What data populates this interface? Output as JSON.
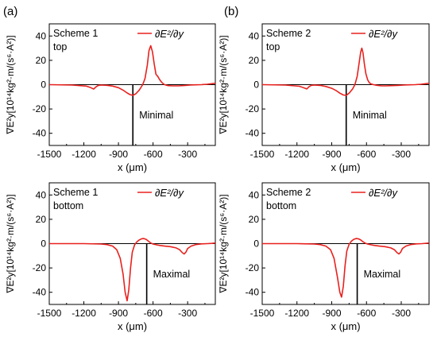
{
  "panel_letters": [
    "(a)",
    "(b)"
  ],
  "chart_data": [
    {
      "type": "line",
      "panel": "(a) top",
      "scheme_lines": [
        "Scheme 1",
        "top"
      ],
      "legend": "∂E²/∂y",
      "xlabel": "x (μm)",
      "ylabel": "∇E²y[10¹⁴kg²·m/(s⁶·A²)]",
      "xlim": [
        -1500,
        -60
      ],
      "ylim": [
        -50,
        50
      ],
      "xticks": [
        -1500,
        -1200,
        -900,
        -600,
        -300
      ],
      "yticks": [
        -40,
        -20,
        0,
        20,
        40
      ],
      "annotation": {
        "text": "Minimal",
        "x": -775
      },
      "series": [
        {
          "color": "#e8211e",
          "x": [
            -1500,
            -1300,
            -1180,
            -1140,
            -1115,
            -1095,
            -1075,
            -1050,
            -1000,
            -950,
            -900,
            -860,
            -830,
            -800,
            -775,
            -750,
            -720,
            -690,
            -670,
            -650,
            -635,
            -620,
            -605,
            -590,
            -575,
            -560,
            -545,
            -530,
            -515,
            -500,
            -470,
            -430,
            -380,
            -330,
            -280,
            -230,
            -180,
            -130,
            -90,
            -60
          ],
          "y": [
            0,
            -0.3,
            -1.2,
            -2.5,
            -3.6,
            -1.8,
            -0.6,
            -0.3,
            -0.5,
            -1.2,
            -2.5,
            -4.5,
            -6.5,
            -8.2,
            -8.8,
            -7.5,
            -4.5,
            0,
            5,
            16,
            28,
            32,
            27,
            17,
            8.5,
            7,
            4.5,
            2.5,
            1,
            0,
            -0.8,
            -1,
            -1,
            -0.7,
            -0.3,
            -0.1,
            0,
            0.3,
            0.8,
            1.2
          ]
        }
      ]
    },
    {
      "type": "line",
      "panel": "(b) top",
      "scheme_lines": [
        "Scheme 2",
        "top"
      ],
      "legend": "∂E²/∂y",
      "xlabel": "x (μm)",
      "ylabel": "∇E²y[10¹⁴kg²·m/(s⁶·A²)]",
      "xlim": [
        -1500,
        -60
      ],
      "ylim": [
        -50,
        50
      ],
      "xticks": [
        -1500,
        -1200,
        -900,
        -600,
        -300
      ],
      "yticks": [
        -40,
        -20,
        0,
        20,
        40
      ],
      "annotation": {
        "text": "Minimal",
        "x": -775
      },
      "series": [
        {
          "color": "#e8211e",
          "x": [
            -1500,
            -1300,
            -1180,
            -1140,
            -1115,
            -1095,
            -1075,
            -1050,
            -1000,
            -950,
            -900,
            -860,
            -830,
            -800,
            -775,
            -750,
            -720,
            -700,
            -680,
            -665,
            -650,
            -640,
            -630,
            -618,
            -605,
            -590,
            -575,
            -560,
            -540,
            -510,
            -470,
            -430,
            -380,
            -330,
            -280,
            -230,
            -180,
            -130,
            -90,
            -60
          ],
          "y": [
            0,
            -0.3,
            -1.3,
            -2.6,
            -3.5,
            -1.6,
            -0.5,
            -0.3,
            -0.6,
            -1.5,
            -3,
            -5,
            -7,
            -8.5,
            -8.8,
            -7,
            -3.5,
            0,
            7,
            17,
            27,
            30,
            26,
            17,
            9,
            4,
            1.5,
            0.5,
            0,
            -0.5,
            -1,
            -1,
            -0.8,
            -0.6,
            -0.3,
            -0.1,
            0,
            0.3,
            0.8,
            1.2
          ]
        }
      ]
    },
    {
      "type": "line",
      "panel": "(a) bottom",
      "scheme_lines": [
        "Scheme 1",
        "bottom"
      ],
      "legend": "∂E²/∂y",
      "xlabel": "x (μm)",
      "ylabel": "∇E²y[10¹⁴kg²·m/(s⁶·A²)]",
      "xlim": [
        -1500,
        -60
      ],
      "ylim": [
        -50,
        50
      ],
      "xticks": [
        -1500,
        -1200,
        -900,
        -600,
        -300
      ],
      "yticks": [
        -40,
        -20,
        0,
        20,
        40
      ],
      "annotation": {
        "text": "Maximal",
        "x": -655
      },
      "series": [
        {
          "color": "#e8211e",
          "x": [
            -1500,
            -1200,
            -1050,
            -1000,
            -950,
            -915,
            -885,
            -860,
            -842,
            -825,
            -810,
            -795,
            -780,
            -760,
            -740,
            -720,
            -700,
            -680,
            -660,
            -640,
            -620,
            -600,
            -570,
            -540,
            -500,
            -450,
            -400,
            -370,
            -345,
            -330,
            -315,
            -300,
            -270,
            -230,
            -180,
            -130,
            -90,
            -60
          ],
          "y": [
            0,
            0,
            -0.3,
            -0.8,
            -2,
            -5,
            -12,
            -25,
            -40,
            -47,
            -38,
            -20,
            -7,
            -1,
            1.5,
            3,
            4,
            4.2,
            3.5,
            2,
            0.5,
            -0.3,
            -1,
            -1.5,
            -2,
            -2.5,
            -3.5,
            -5,
            -7.5,
            -8.5,
            -7,
            -4,
            -2,
            -0.8,
            -0.2,
            0,
            0.2,
            0.5
          ]
        }
      ]
    },
    {
      "type": "line",
      "panel": "(b) bottom",
      "scheme_lines": [
        "Scheme 2",
        "bottom"
      ],
      "legend": "∂E²/∂y",
      "xlabel": "x (μm)",
      "ylabel": "∇E²y[10¹⁴kg²·m/(s⁶·A²)]",
      "xlim": [
        -1500,
        -60
      ],
      "ylim": [
        -50,
        50
      ],
      "xticks": [
        -1500,
        -1200,
        -900,
        -600,
        -300
      ],
      "yticks": [
        -40,
        -20,
        0,
        20,
        40
      ],
      "annotation": {
        "text": "Maximal",
        "x": -680
      },
      "series": [
        {
          "color": "#e8211e",
          "x": [
            -1500,
            -1200,
            -1050,
            -1000,
            -950,
            -910,
            -880,
            -850,
            -830,
            -815,
            -800,
            -785,
            -770,
            -750,
            -730,
            -710,
            -690,
            -670,
            -650,
            -630,
            -610,
            -590,
            -560,
            -530,
            -490,
            -440,
            -390,
            -360,
            -335,
            -320,
            -305,
            -290,
            -260,
            -220,
            -170,
            -120,
            -80,
            -60
          ],
          "y": [
            0,
            0,
            -0.3,
            -0.8,
            -2,
            -5,
            -12,
            -28,
            -40,
            -44,
            -35,
            -18,
            -6,
            -0.5,
            2,
            3.5,
            4.2,
            4,
            3,
            1.5,
            0.3,
            -0.3,
            -1,
            -1.5,
            -2,
            -2.5,
            -3.5,
            -5,
            -7.5,
            -8.5,
            -7,
            -4,
            -2,
            -0.8,
            -0.2,
            0,
            0.3,
            0.5
          ]
        }
      ]
    }
  ]
}
